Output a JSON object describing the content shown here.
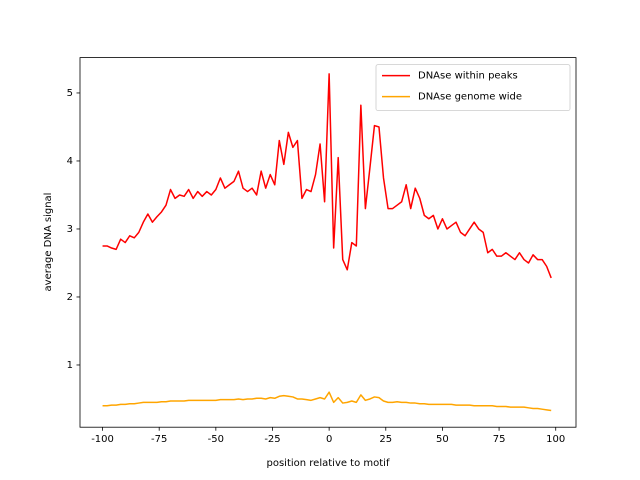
{
  "chart_data": {
    "type": "line",
    "xlabel": "position relative to motif",
    "ylabel": "average DNA signal",
    "x": [
      -100,
      -98,
      -96,
      -94,
      -92,
      -90,
      -88,
      -86,
      -84,
      -82,
      -80,
      -78,
      -76,
      -74,
      -72,
      -70,
      -68,
      -66,
      -64,
      -62,
      -60,
      -58,
      -56,
      -54,
      -52,
      -50,
      -48,
      -46,
      -44,
      -42,
      -40,
      -38,
      -36,
      -34,
      -32,
      -30,
      -28,
      -26,
      -24,
      -22,
      -20,
      -18,
      -16,
      -14,
      -12,
      -10,
      -8,
      -6,
      -4,
      -2,
      0,
      2,
      4,
      6,
      8,
      10,
      12,
      14,
      16,
      18,
      20,
      22,
      24,
      26,
      28,
      30,
      32,
      34,
      36,
      38,
      40,
      42,
      44,
      46,
      48,
      50,
      52,
      54,
      56,
      58,
      60,
      62,
      64,
      66,
      68,
      70,
      72,
      74,
      76,
      78,
      80,
      82,
      84,
      86,
      88,
      90,
      92,
      94,
      96,
      98
    ],
    "series": [
      {
        "name": "DNAse within peaks",
        "color": "#ff0000",
        "values": [
          2.75,
          2.75,
          2.72,
          2.7,
          2.85,
          2.8,
          2.9,
          2.87,
          2.95,
          3.1,
          3.22,
          3.1,
          3.18,
          3.25,
          3.35,
          3.58,
          3.45,
          3.5,
          3.48,
          3.58,
          3.45,
          3.55,
          3.48,
          3.55,
          3.5,
          3.58,
          3.75,
          3.6,
          3.65,
          3.7,
          3.85,
          3.6,
          3.55,
          3.6,
          3.5,
          3.85,
          3.6,
          3.8,
          3.65,
          4.3,
          3.95,
          4.42,
          4.2,
          4.3,
          3.45,
          3.58,
          3.55,
          3.8,
          4.25,
          3.4,
          5.28,
          2.72,
          4.05,
          2.55,
          2.4,
          2.8,
          2.75,
          4.82,
          3.3,
          3.9,
          4.52,
          4.5,
          3.75,
          3.3,
          3.3,
          3.35,
          3.4,
          3.65,
          3.3,
          3.6,
          3.45,
          3.2,
          3.15,
          3.2,
          3.0,
          3.15,
          3.0,
          3.05,
          3.1,
          2.95,
          2.9,
          3.0,
          3.1,
          3.0,
          2.95,
          2.65,
          2.7,
          2.6,
          2.6,
          2.65,
          2.6,
          2.55,
          2.65,
          2.55,
          2.5,
          2.62,
          2.55,
          2.55,
          2.45,
          2.28
        ]
      },
      {
        "name": "DNAse genome wide",
        "color": "#ffa500",
        "values": [
          0.4,
          0.4,
          0.41,
          0.41,
          0.42,
          0.42,
          0.43,
          0.43,
          0.44,
          0.45,
          0.45,
          0.45,
          0.45,
          0.46,
          0.46,
          0.47,
          0.47,
          0.47,
          0.47,
          0.48,
          0.48,
          0.48,
          0.48,
          0.48,
          0.48,
          0.48,
          0.49,
          0.49,
          0.49,
          0.49,
          0.5,
          0.49,
          0.5,
          0.5,
          0.51,
          0.51,
          0.5,
          0.52,
          0.51,
          0.54,
          0.55,
          0.54,
          0.53,
          0.5,
          0.5,
          0.49,
          0.48,
          0.5,
          0.52,
          0.5,
          0.6,
          0.45,
          0.52,
          0.44,
          0.45,
          0.47,
          0.45,
          0.56,
          0.48,
          0.5,
          0.53,
          0.52,
          0.47,
          0.45,
          0.45,
          0.46,
          0.45,
          0.45,
          0.44,
          0.44,
          0.43,
          0.43,
          0.42,
          0.42,
          0.42,
          0.42,
          0.42,
          0.42,
          0.41,
          0.41,
          0.41,
          0.41,
          0.4,
          0.4,
          0.4,
          0.4,
          0.4,
          0.39,
          0.39,
          0.39,
          0.38,
          0.38,
          0.38,
          0.38,
          0.37,
          0.36,
          0.36,
          0.35,
          0.34,
          0.33
        ]
      }
    ],
    "xlim": [
      -109.95,
      108.95
    ],
    "xticks": [
      -100,
      -75,
      -50,
      -25,
      0,
      25,
      50,
      75,
      100
    ],
    "ylim": [
      0.085,
      5.52
    ],
    "yticks": [
      1,
      2,
      3,
      4,
      5
    ],
    "legend": "upper right"
  }
}
